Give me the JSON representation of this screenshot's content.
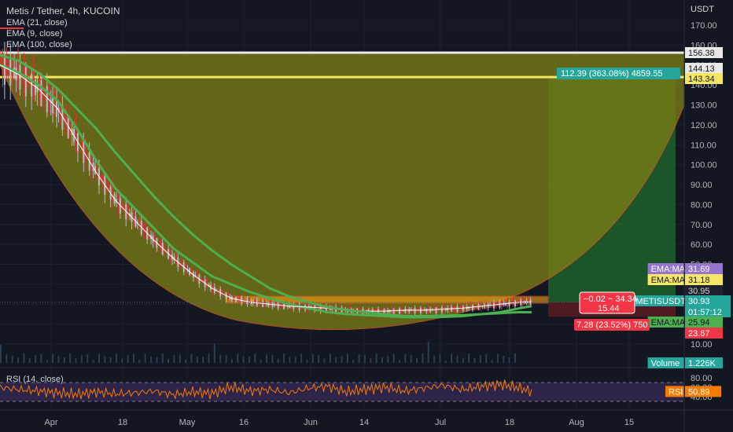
{
  "header": {
    "title": "Metis / Tether, 4h, KUCOIN",
    "indicators": [
      "EMA (21, close)",
      "EMA (9, close)",
      "EMA (100, close)"
    ],
    "rsi_label": "RSI (14, close)",
    "currency": "USDT"
  },
  "colors": {
    "background": "#131722",
    "cup_fill": "#7a7d16",
    "target_green": "#1f6b2b",
    "stop_red": "#5b1b22",
    "ema21": "#4caf50",
    "ema9": "#ffffff",
    "candle_up": "#b0bec5",
    "candle_down": "#e03131",
    "rsi_line": "#f57c00",
    "rsi_band": "#3b2a5a"
  },
  "chart_data": {
    "type": "line",
    "series": [
      {
        "name": "EMA (21, close)",
        "points": [
          [
            0,
            150
          ],
          [
            10,
            146
          ],
          [
            20,
            140
          ],
          [
            30,
            132
          ],
          [
            40,
            118
          ],
          [
            50,
            102
          ],
          [
            60,
            88
          ],
          [
            70,
            78
          ],
          [
            80,
            68
          ],
          [
            90,
            58
          ],
          [
            100,
            51
          ],
          [
            110,
            44
          ],
          [
            120,
            40
          ],
          [
            130,
            36
          ],
          [
            140,
            33
          ],
          [
            150,
            30
          ],
          [
            160,
            28
          ],
          [
            170,
            26
          ],
          [
            180,
            25
          ],
          [
            190,
            24.5
          ],
          [
            200,
            24
          ],
          [
            210,
            23.5
          ],
          [
            220,
            23.5
          ],
          [
            230,
            23.6
          ],
          [
            240,
            24
          ],
          [
            250,
            25
          ],
          [
            260,
            26
          ],
          [
            270,
            28
          ],
          [
            276,
            29
          ]
        ]
      },
      {
        "name": "EMA (9, close)",
        "points": [
          [
            0,
            150
          ],
          [
            10,
            145
          ],
          [
            20,
            138
          ],
          [
            30,
            128
          ],
          [
            40,
            112
          ],
          [
            50,
            96
          ],
          [
            60,
            82
          ],
          [
            70,
            72
          ],
          [
            80,
            62
          ],
          [
            90,
            53
          ],
          [
            100,
            45
          ],
          [
            110,
            38
          ],
          [
            120,
            33
          ],
          [
            130,
            31
          ],
          [
            140,
            30
          ],
          [
            150,
            29
          ],
          [
            160,
            28.5
          ],
          [
            170,
            28
          ],
          [
            180,
            27
          ],
          [
            190,
            26.5
          ],
          [
            200,
            26.5
          ],
          [
            210,
            27
          ],
          [
            220,
            27
          ],
          [
            230,
            27.5
          ],
          [
            240,
            28
          ],
          [
            250,
            29
          ],
          [
            260,
            30
          ],
          [
            270,
            31
          ],
          [
            276,
            31.2
          ]
        ]
      },
      {
        "name": "EMA (100, close)",
        "points": [
          [
            0,
            155
          ],
          [
            10,
            152
          ],
          [
            20,
            146
          ],
          [
            30,
            138
          ],
          [
            40,
            128
          ],
          [
            50,
            118
          ],
          [
            60,
            106
          ],
          [
            70,
            95
          ],
          [
            80,
            84
          ],
          [
            90,
            74
          ],
          [
            100,
            65
          ],
          [
            110,
            57
          ],
          [
            120,
            50
          ],
          [
            130,
            44
          ],
          [
            140,
            38
          ],
          [
            150,
            34
          ],
          [
            160,
            31
          ],
          [
            170,
            28.5
          ],
          [
            180,
            27
          ],
          [
            190,
            26
          ],
          [
            200,
            25
          ],
          [
            210,
            24
          ],
          [
            220,
            24
          ],
          [
            230,
            24.2
          ],
          [
            240,
            24.5
          ],
          [
            250,
            25
          ],
          [
            260,
            25.5
          ],
          [
            270,
            26
          ],
          [
            276,
            25.9
          ]
        ]
      },
      {
        "name": "RSI (14, close)",
        "points": [
          [
            0,
            60
          ],
          [
            10,
            55
          ],
          [
            20,
            52
          ],
          [
            30,
            48
          ],
          [
            40,
            45
          ],
          [
            50,
            50
          ],
          [
            60,
            46
          ],
          [
            70,
            48
          ],
          [
            80,
            52
          ],
          [
            90,
            44
          ],
          [
            100,
            50
          ],
          [
            110,
            47
          ],
          [
            120,
            60
          ],
          [
            130,
            52
          ],
          [
            140,
            55
          ],
          [
            150,
            48
          ],
          [
            160,
            58
          ],
          [
            170,
            62
          ],
          [
            180,
            50
          ],
          [
            190,
            56
          ],
          [
            200,
            60
          ],
          [
            210,
            52
          ],
          [
            220,
            58
          ],
          [
            230,
            64
          ],
          [
            240,
            55
          ],
          [
            250,
            62
          ],
          [
            260,
            66
          ],
          [
            270,
            58
          ],
          [
            276,
            50.89
          ]
        ]
      }
    ],
    "price_axis": {
      "min": 10,
      "max": 170,
      "ticks": [
        170,
        160,
        150,
        140,
        130,
        120,
        110,
        100,
        90,
        80,
        70,
        60,
        50,
        40,
        30,
        20,
        10
      ]
    },
    "time_axis": {
      "labels": [
        "Apr",
        "18",
        "May",
        "16",
        "Jun",
        "14",
        "Jul",
        "18",
        "Aug",
        "15"
      ]
    },
    "rsi_axis": {
      "ticks": [
        80,
        60,
        40
      ],
      "upper_band": 70,
      "lower_band": 30
    },
    "levels": {
      "top_band": [
        144.13,
        156.38
      ],
      "entry": 30.95,
      "current": 30.93,
      "stop": 23.67
    },
    "price_tags": [
      {
        "label": "",
        "value": "156.38",
        "kind": "white"
      },
      {
        "label": "",
        "value": "144.13",
        "kind": "white"
      },
      {
        "label": "",
        "value": "143.34",
        "kind": "yellow"
      },
      {
        "label": "EMA:MA",
        "value": "31.69",
        "kind": "purple"
      },
      {
        "label": "EMA:MA",
        "value": "31.18",
        "kind": "yellow"
      },
      {
        "label": "",
        "value": "30.95",
        "kind": "dark"
      },
      {
        "label": "METISUSDT",
        "value": "30.93",
        "kind": "teal",
        "sub": "01:57:12"
      },
      {
        "label": "EMA:MA",
        "value": "25.94",
        "kind": "green"
      },
      {
        "label": "",
        "value": "23.67",
        "kind": "red"
      },
      {
        "label": "Volume",
        "value": "1.226K",
        "kind": "teal"
      }
    ],
    "target_label": "112.39 (363.08%) 4859.55",
    "stop_label": "7.28 (23.52%) 750",
    "measure_label_line1": "−0.02 ~ 34.34",
    "measure_label_line2": "15.44",
    "rsi_value": "50.89",
    "rsi_tag_label": "RSI"
  }
}
